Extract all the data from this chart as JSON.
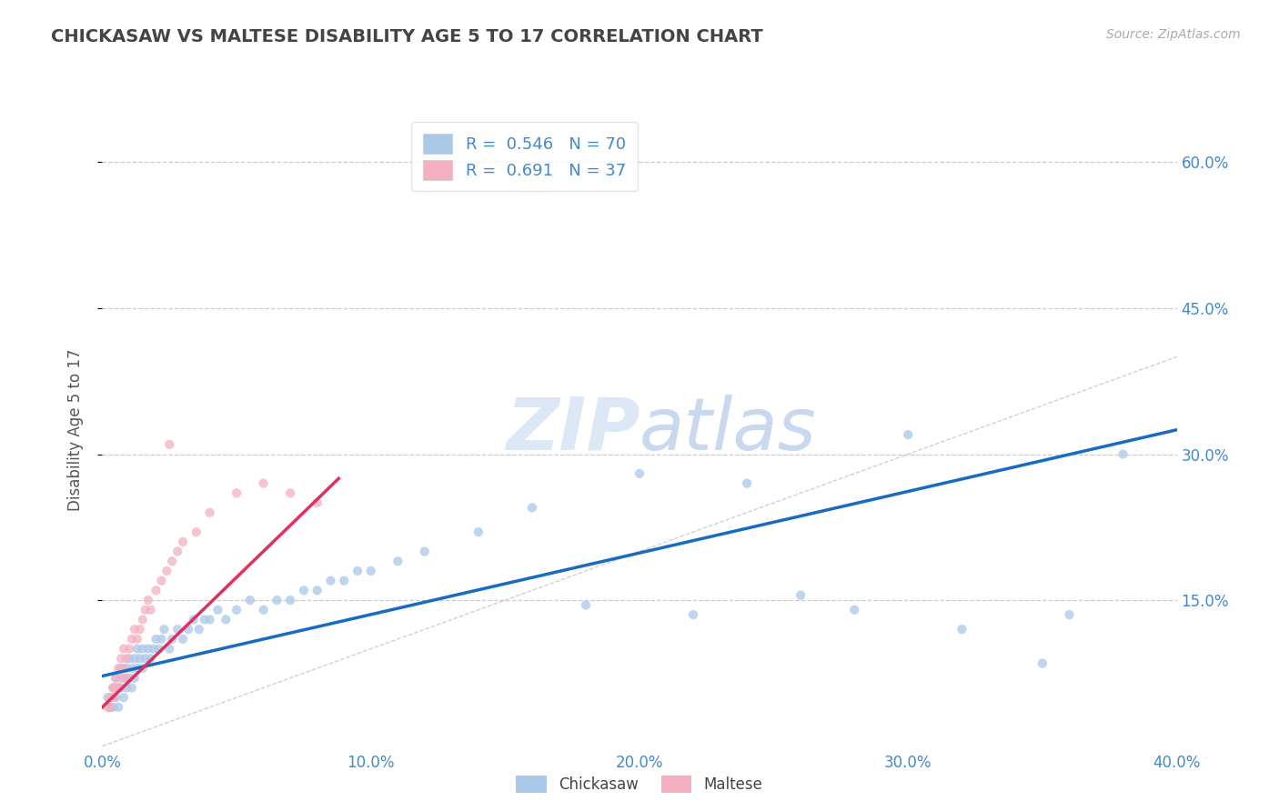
{
  "title": "CHICKASAW VS MALTESE DISABILITY AGE 5 TO 17 CORRELATION CHART",
  "source_text": "Source: ZipAtlas.com",
  "ylabel": "Disability Age 5 to 17",
  "xlim": [
    0.0,
    0.4
  ],
  "ylim": [
    0.0,
    0.65
  ],
  "xtick_labels": [
    "0.0%",
    "",
    "10.0%",
    "",
    "20.0%",
    "",
    "30.0%",
    "",
    "40.0%"
  ],
  "xtick_vals": [
    0.0,
    0.05,
    0.1,
    0.15,
    0.2,
    0.25,
    0.3,
    0.35,
    0.4
  ],
  "ytick_labels": [
    "15.0%",
    "30.0%",
    "45.0%",
    "60.0%"
  ],
  "ytick_vals": [
    0.15,
    0.3,
    0.45,
    0.6
  ],
  "chickasaw_R": 0.546,
  "chickasaw_N": 70,
  "maltese_R": 0.691,
  "maltese_N": 37,
  "chickasaw_color": "#aac8e8",
  "maltese_color": "#f4b0c0",
  "chickasaw_trend_color": "#1a6bbf",
  "maltese_trend_color": "#e03060",
  "scatter_alpha": 0.75,
  "marker_size": 55,
  "background_color": "#ffffff",
  "grid_color": "#cccccc",
  "title_color": "#444444",
  "axis_label_color": "#555555",
  "tick_label_color": "#4488cc",
  "legend_box_color": "#ffffff",
  "watermark_color": "#dce8f5",
  "chickasaw_trend_start_x": 0.0,
  "chickasaw_trend_start_y": 0.072,
  "chickasaw_trend_end_x": 0.4,
  "chickasaw_trend_end_y": 0.325,
  "maltese_trend_start_x": 0.0,
  "maltese_trend_start_y": 0.04,
  "maltese_trend_end_x": 0.088,
  "maltese_trend_end_y": 0.275,
  "chickasaw_x": [
    0.002,
    0.003,
    0.004,
    0.004,
    0.005,
    0.005,
    0.006,
    0.006,
    0.007,
    0.007,
    0.008,
    0.008,
    0.009,
    0.009,
    0.01,
    0.01,
    0.011,
    0.011,
    0.012,
    0.012,
    0.013,
    0.013,
    0.014,
    0.015,
    0.015,
    0.016,
    0.017,
    0.018,
    0.019,
    0.02,
    0.021,
    0.022,
    0.023,
    0.025,
    0.026,
    0.028,
    0.03,
    0.032,
    0.034,
    0.036,
    0.038,
    0.04,
    0.043,
    0.046,
    0.05,
    0.055,
    0.06,
    0.065,
    0.07,
    0.075,
    0.08,
    0.085,
    0.09,
    0.095,
    0.1,
    0.11,
    0.12,
    0.14,
    0.16,
    0.18,
    0.2,
    0.22,
    0.24,
    0.26,
    0.28,
    0.3,
    0.32,
    0.35,
    0.36,
    0.38
  ],
  "chickasaw_y": [
    0.05,
    0.04,
    0.06,
    0.04,
    0.07,
    0.05,
    0.06,
    0.04,
    0.08,
    0.06,
    0.07,
    0.05,
    0.08,
    0.06,
    0.09,
    0.07,
    0.08,
    0.06,
    0.09,
    0.07,
    0.1,
    0.08,
    0.09,
    0.1,
    0.08,
    0.09,
    0.1,
    0.09,
    0.1,
    0.11,
    0.1,
    0.11,
    0.12,
    0.1,
    0.11,
    0.12,
    0.11,
    0.12,
    0.13,
    0.12,
    0.13,
    0.13,
    0.14,
    0.13,
    0.14,
    0.15,
    0.14,
    0.15,
    0.15,
    0.16,
    0.16,
    0.17,
    0.17,
    0.18,
    0.18,
    0.19,
    0.2,
    0.22,
    0.245,
    0.145,
    0.28,
    0.135,
    0.27,
    0.155,
    0.14,
    0.32,
    0.12,
    0.085,
    0.135,
    0.3
  ],
  "maltese_x": [
    0.002,
    0.003,
    0.003,
    0.004,
    0.004,
    0.005,
    0.005,
    0.006,
    0.006,
    0.007,
    0.007,
    0.008,
    0.008,
    0.009,
    0.009,
    0.01,
    0.011,
    0.012,
    0.013,
    0.014,
    0.015,
    0.016,
    0.017,
    0.018,
    0.02,
    0.022,
    0.024,
    0.026,
    0.028,
    0.03,
    0.035,
    0.04,
    0.05,
    0.06,
    0.07,
    0.08,
    0.025
  ],
  "maltese_y": [
    0.04,
    0.05,
    0.04,
    0.06,
    0.05,
    0.07,
    0.06,
    0.08,
    0.06,
    0.09,
    0.07,
    0.1,
    0.08,
    0.09,
    0.07,
    0.1,
    0.11,
    0.12,
    0.11,
    0.12,
    0.13,
    0.14,
    0.15,
    0.14,
    0.16,
    0.17,
    0.18,
    0.19,
    0.2,
    0.21,
    0.22,
    0.24,
    0.26,
    0.27,
    0.26,
    0.25,
    0.31
  ]
}
